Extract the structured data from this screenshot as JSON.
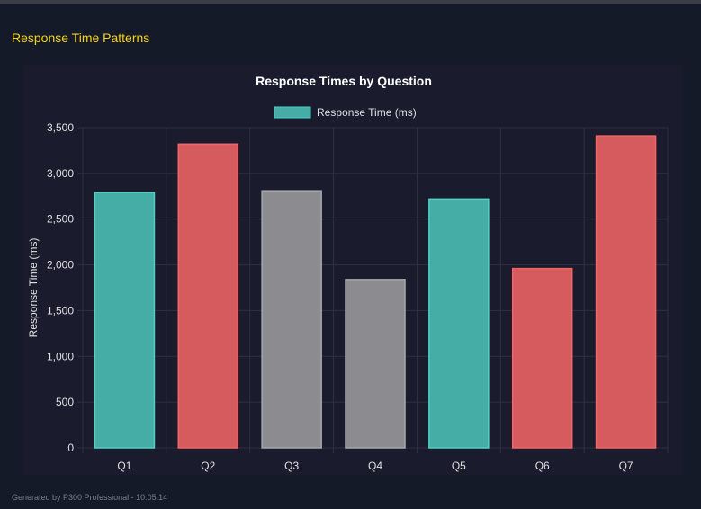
{
  "section_title": "Response Time Patterns",
  "footer": "Generated by P300 Professional - 10:05:14",
  "chart_data": {
    "type": "bar",
    "title": "Response Times by Question",
    "legend": {
      "label": "Response Time (ms)",
      "placement": "top"
    },
    "ylabel": "Response Time (ms)",
    "xlabel": "",
    "categories": [
      "Q1",
      "Q2",
      "Q3",
      "Q4",
      "Q5",
      "Q6",
      "Q7"
    ],
    "values": [
      2790,
      3320,
      2810,
      1840,
      2720,
      1960,
      3410
    ],
    "bar_colors": [
      "teal",
      "red",
      "gray",
      "gray",
      "teal",
      "red",
      "red"
    ],
    "ylim": [
      0,
      3500
    ],
    "yticks": [
      0,
      500,
      1000,
      1500,
      2000,
      2500,
      3000,
      3500
    ],
    "ytick_labels": [
      "0",
      "500",
      "1,000",
      "1,500",
      "2,000",
      "2,500",
      "3,000",
      "3,500"
    ],
    "grid": true,
    "colors": {
      "teal": {
        "fill": "#45aca6",
        "stroke": "#4fd1c5"
      },
      "red": {
        "fill": "#d55b5f",
        "stroke": "#f56565"
      },
      "gray": {
        "fill": "#8c8b8f",
        "stroke": "#a8a8ac"
      }
    }
  }
}
